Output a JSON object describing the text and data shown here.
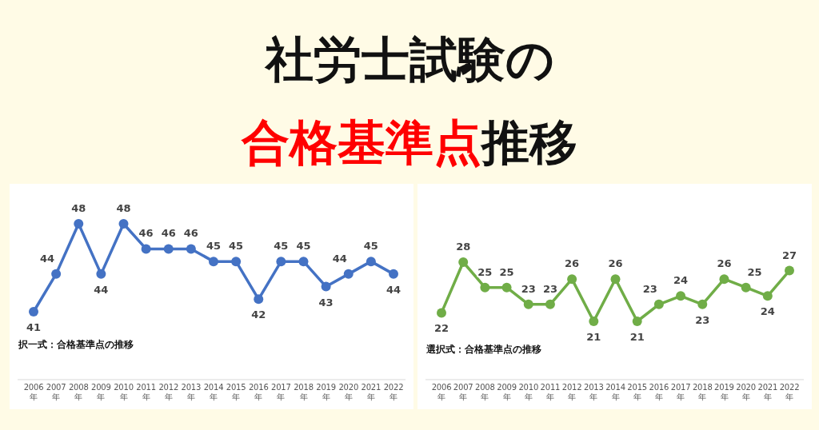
{
  "chart_data": [
    {
      "type": "other",
      "title": "社労士試験の",
      "subtitle": "合格基準点",
      "annotations": [
        "推移"
      ]
    },
    {
      "type": "line",
      "title": "択一式：合格基準点の推移",
      "categories": [
        "2006年",
        "2007年",
        "2008年",
        "2009年",
        "2010年",
        "2011年",
        "2012年",
        "2013年",
        "2014年",
        "2015年",
        "2016年",
        "2017年",
        "2018年",
        "2019年",
        "2020年",
        "2021年",
        "2022年"
      ],
      "values": [
        41,
        44,
        48,
        44,
        48,
        46,
        46,
        46,
        45,
        45,
        42,
        45,
        45,
        43,
        44,
        45,
        44
      ],
      "color": "#4472c4",
      "marker": "circle",
      "data_labels": true
    },
    {
      "type": "line",
      "title": "選択式：合格基準点の推移",
      "categories": [
        "2006年",
        "2007年",
        "2008年",
        "2009年",
        "2010年",
        "2011年",
        "2012年",
        "2013年",
        "2014年",
        "2015年",
        "2016年",
        "2017年",
        "2018年",
        "2019年",
        "2020年",
        "2021年",
        "2022年"
      ],
      "values": [
        22,
        28,
        25,
        25,
        23,
        23,
        26,
        21,
        26,
        21,
        23,
        24,
        23,
        26,
        25,
        24,
        27
      ],
      "color": "#70ad47",
      "marker": "circle",
      "data_labels": true
    }
  ]
}
